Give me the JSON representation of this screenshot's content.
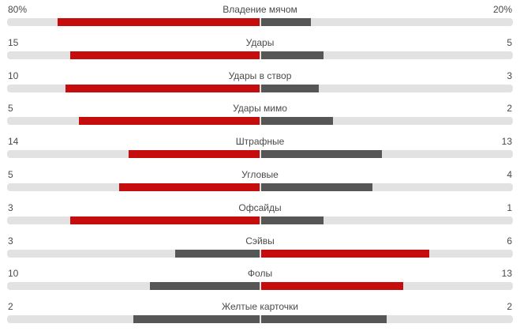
{
  "colors": {
    "leading_bar": "#c50d0d",
    "trailing_bar": "#565656",
    "track": "#e2e2e2",
    "text": "#4a4a4a",
    "background": "#ffffff"
  },
  "chart_data": {
    "type": "bar",
    "subtype": "opposed-horizontal-pairs",
    "title": "",
    "legend_position": "none",
    "grid": false,
    "bar_scale": "each bar width = value / (home + away), rendered over half of the track from the center outward",
    "highlight_rule": "side with the larger value is red; smaller value is dark gray; on a tie both are dark gray",
    "rows": [
      {
        "label": "Владение мячом",
        "home": 80,
        "away": 20,
        "home_text": "80%",
        "away_text": "20%"
      },
      {
        "label": "Удары",
        "home": 15,
        "away": 5,
        "home_text": "15",
        "away_text": "5"
      },
      {
        "label": "Удары в створ",
        "home": 10,
        "away": 3,
        "home_text": "10",
        "away_text": "3"
      },
      {
        "label": "Удары мимо",
        "home": 5,
        "away": 2,
        "home_text": "5",
        "away_text": "2"
      },
      {
        "label": "Штрафные",
        "home": 14,
        "away": 13,
        "home_text": "14",
        "away_text": "13"
      },
      {
        "label": "Угловые",
        "home": 5,
        "away": 4,
        "home_text": "5",
        "away_text": "4"
      },
      {
        "label": "Офсайды",
        "home": 3,
        "away": 1,
        "home_text": "3",
        "away_text": "1"
      },
      {
        "label": "Сэйвы",
        "home": 3,
        "away": 6,
        "home_text": "3",
        "away_text": "6"
      },
      {
        "label": "Фолы",
        "home": 10,
        "away": 13,
        "home_text": "10",
        "away_text": "13"
      },
      {
        "label": "Желтые карточки",
        "home": 2,
        "away": 2,
        "home_text": "2",
        "away_text": "2"
      }
    ]
  }
}
